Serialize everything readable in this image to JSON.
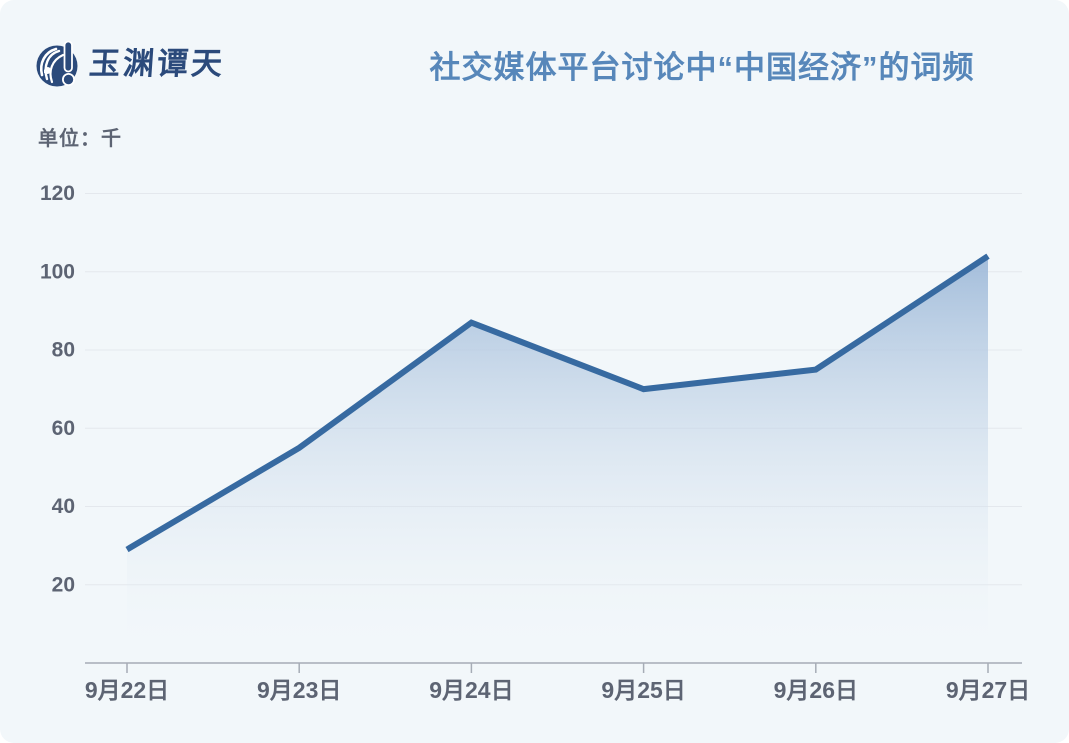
{
  "page": {
    "background": "#f2f7fa"
  },
  "logo": {
    "text": "玉渊谭天",
    "color": "#2b4a7b"
  },
  "header": {
    "title": "社交媒体平台讨论中“中国经济”的词频",
    "title_color": "#5787ba"
  },
  "chart_data": {
    "type": "area",
    "title": "社交媒体平台讨论中“中国经济”的词频",
    "unit_label": "单位：千",
    "categories": [
      "9月22日",
      "9月23日",
      "9月24日",
      "9月25日",
      "9月26日",
      "9月27日"
    ],
    "values": [
      29,
      55,
      87,
      70,
      75,
      104
    ],
    "ylim": [
      0,
      120
    ],
    "yticks": [
      20,
      40,
      60,
      80,
      100,
      120
    ],
    "grid": true,
    "legend_position": "none",
    "line_color": "#376aa1",
    "line_width": 6,
    "fill_top_color": "#9fbad9",
    "fill_bottom_color": "#f2f7fa",
    "gridline_color": "#e4e8ed",
    "axis_line_color": "#a6acb6",
    "axis_label_color": "#5d6473"
  }
}
